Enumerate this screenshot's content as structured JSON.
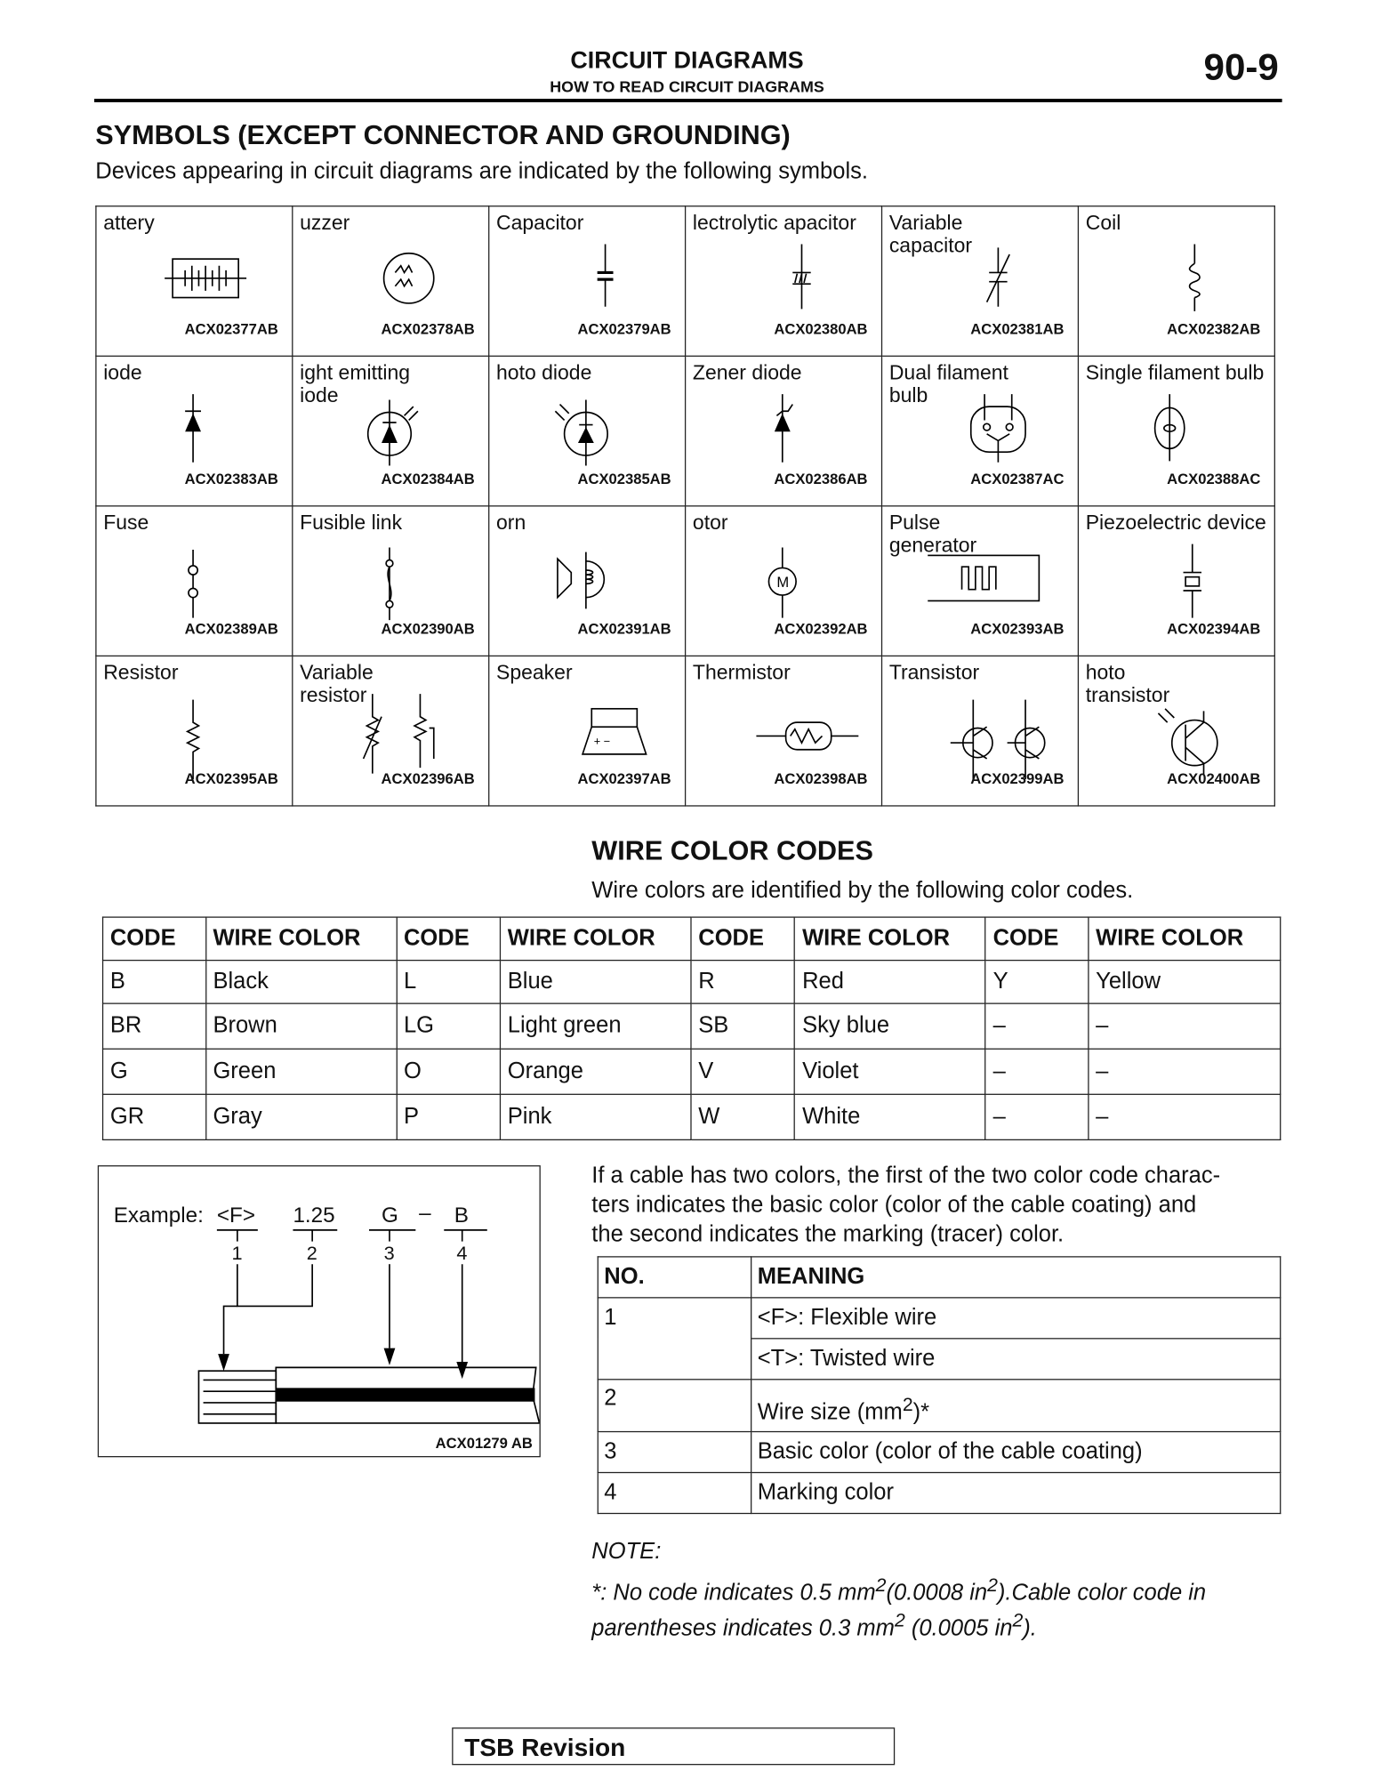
{
  "header": {
    "title": "CIRCUIT DIAGRAMS",
    "subtitle": "HOW TO READ CIRCUIT DIAGRAMS",
    "page_number": "90-9"
  },
  "symbols": {
    "heading": "SYMBOLS (EXCEPT CONNECTOR AND GROUNDING)",
    "intro": "Devices appearing in circuit diagrams are indicated by the following symbols.",
    "items": [
      {
        "label": "attery",
        "code": "ACX02377AB",
        "icon": "battery"
      },
      {
        "label": "uzzer",
        "code": "ACX02378AB",
        "icon": "buzzer"
      },
      {
        "label": "Capacitor",
        "code": "ACX02379AB",
        "icon": "capacitor"
      },
      {
        "label": "lectrolytic apacitor",
        "code": "ACX02380AB",
        "icon": "electrolytic"
      },
      {
        "label": "Variable capacitor",
        "code": "ACX02381AB",
        "icon": "varcap"
      },
      {
        "label": "Coil",
        "code": "ACX02382AB",
        "icon": "coil"
      },
      {
        "label": "iode",
        "code": "ACX02383AB",
        "icon": "diode"
      },
      {
        "label": "ight emitting iode",
        "code": "ACX02384AB",
        "icon": "led"
      },
      {
        "label": "hoto diode",
        "code": "ACX02385AB",
        "icon": "photodiode"
      },
      {
        "label": "Zener diode",
        "code": "ACX02386AB",
        "icon": "zener"
      },
      {
        "label": "Dual filament bulb",
        "code": "ACX02387AC",
        "icon": "dualbulb"
      },
      {
        "label": "Single filament bulb",
        "code": "ACX02388AC",
        "icon": "bulb"
      },
      {
        "label": "Fuse",
        "code": "ACX02389AB",
        "icon": "fuse"
      },
      {
        "label": "Fusible link",
        "code": "ACX02390AB",
        "icon": "fusible"
      },
      {
        "label": "orn",
        "code": "ACX02391AB",
        "icon": "horn"
      },
      {
        "label": "otor",
        "code": "ACX02392AB",
        "icon": "motor"
      },
      {
        "label": "Pulse generator",
        "code": "ACX02393AB",
        "icon": "pulse"
      },
      {
        "label": "Piezoelectric device",
        "code": "ACX02394AB",
        "icon": "piezo"
      },
      {
        "label": "Resistor",
        "code": "ACX02395AB",
        "icon": "resistor"
      },
      {
        "label": "Variable resistor",
        "code": "ACX02396AB",
        "icon": "varres"
      },
      {
        "label": "Speaker",
        "code": "ACX02397AB",
        "icon": "speaker"
      },
      {
        "label": "Thermistor",
        "code": "ACX02398AB",
        "icon": "thermistor"
      },
      {
        "label": "Transistor",
        "code": "ACX02399AB",
        "icon": "transistor"
      },
      {
        "label": "hoto transistor",
        "code": "ACX02400AB",
        "icon": "phototransistor"
      }
    ]
  },
  "wire_colors": {
    "heading": "WIRE COLOR CODES",
    "intro": "Wire colors are identified by the following color codes.",
    "headers": [
      "CODE",
      "WIRE COLOR",
      "CODE",
      "WIRE COLOR",
      "CODE",
      "WIRE COLOR",
      "CODE",
      "WIRE COLOR"
    ],
    "rows": [
      [
        "B",
        "Black",
        "L",
        "Blue",
        "R",
        "Red",
        "Y",
        "Yellow"
      ],
      [
        "BR",
        "Brown",
        "LG",
        "Light green",
        "SB",
        "Sky blue",
        "–",
        "–"
      ],
      [
        "G",
        "Green",
        "O",
        "Orange",
        "V",
        "Violet",
        "–",
        "–"
      ],
      [
        "GR",
        "Gray",
        "P",
        "Pink",
        "W",
        "White",
        "–",
        "–"
      ]
    ]
  },
  "example": {
    "label": "Example:",
    "parts": [
      "<F>",
      "1.25",
      "G",
      "B"
    ],
    "dash": "–",
    "numbers": [
      "1",
      "2",
      "3",
      "4"
    ],
    "code": "ACX01279 AB"
  },
  "two_color_text": [
    "If a cable has two colors, the first of the two color code charac-",
    "ters indicates the basic color (color of the cable coating) and",
    "the second indicates the marking (tracer) color."
  ],
  "meaning_table": {
    "headers": [
      "NO.",
      "MEANING"
    ],
    "rows": [
      {
        "no": "1",
        "meaning": "<F>: Flexible wire"
      },
      {
        "no": "",
        "meaning": "<T>: Twisted wire"
      },
      {
        "no": "2",
        "meaning": "Wire size (mm",
        "sup": "2",
        "after": ")*"
      },
      {
        "no": "3",
        "meaning": "Basic color (color of the cable coating)"
      },
      {
        "no": "4",
        "meaning": "Marking color"
      }
    ]
  },
  "note": {
    "title": "NOTE:",
    "line1a": "*: No code indicates 0.5 mm",
    "line1b": "(0.0008 in",
    "line1c": ").Cable color code in",
    "line2a": "parentheses indicates 0.3 mm",
    "line2b": " (0.0005 in",
    "line2c": ").",
    "sup": "2"
  },
  "footer": {
    "label": "TSB Revision"
  }
}
